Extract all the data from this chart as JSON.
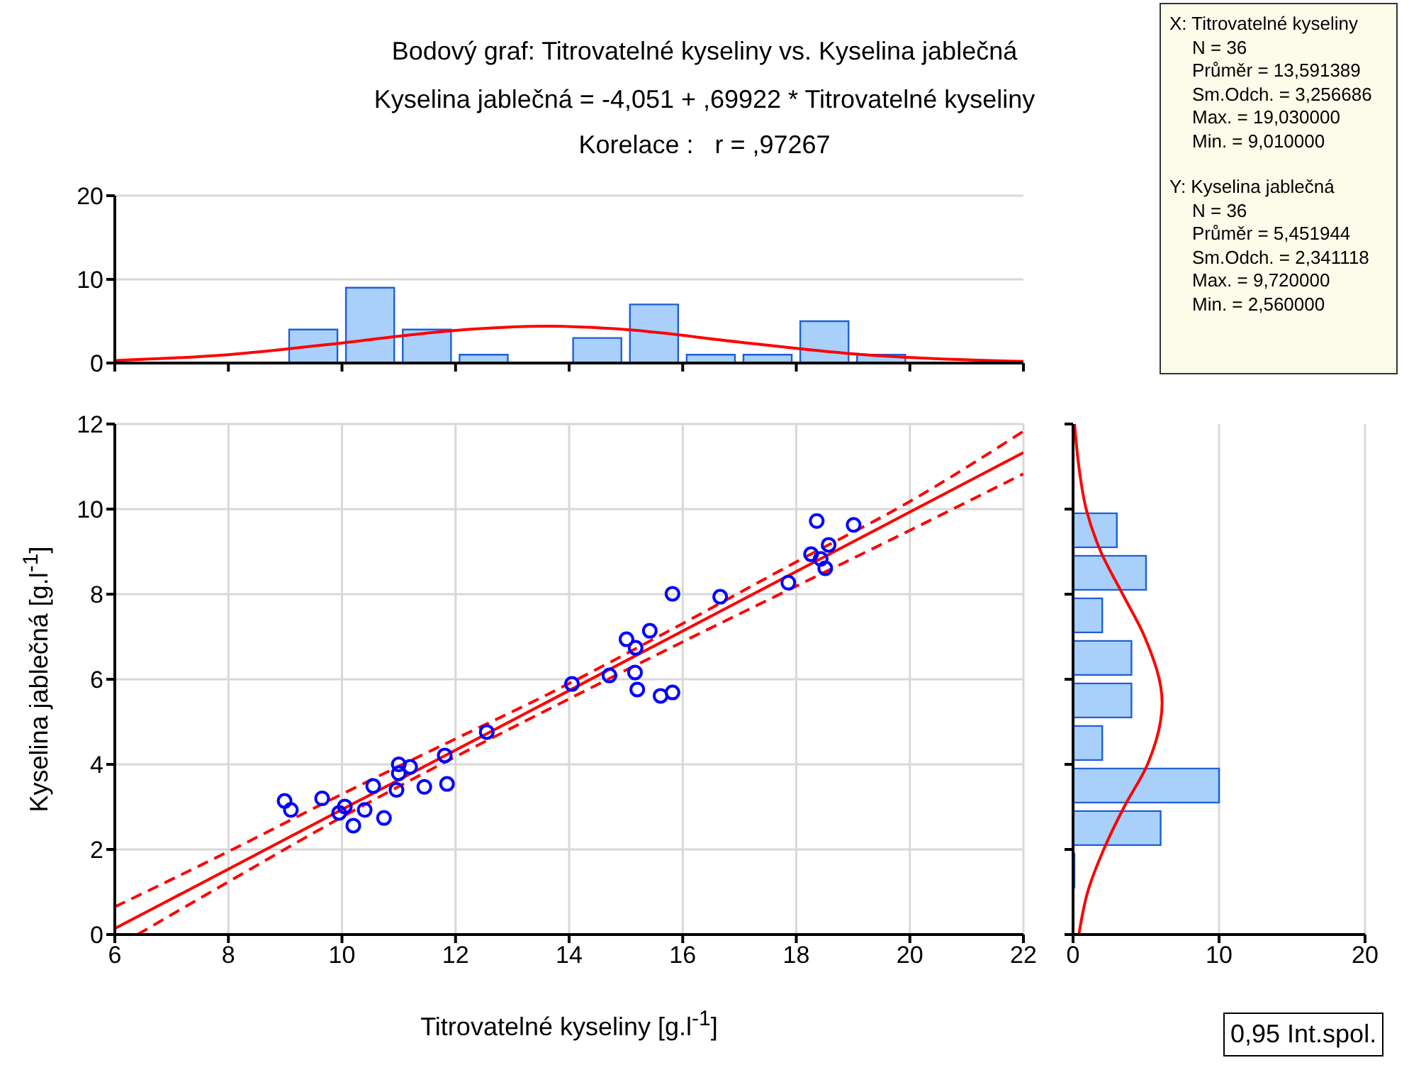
{
  "chart_data": [
    {
      "type": "histogram",
      "title": "Bodový graf: Titrovatelné kyseliny vs. Kyselina jablečná",
      "subtitle": "Kyselina jablečná = -4,051 + ,69922 * Titrovatelné kyseliny",
      "annotations": [
        "Korelace :   r = ,97267"
      ],
      "bins": [
        8,
        9,
        10,
        11,
        12,
        13,
        14,
        15,
        16,
        17,
        18,
        19,
        20
      ],
      "xlim": [
        6,
        22
      ],
      "xticks": [
        {
          "value": 6,
          "label": null
        },
        {
          "value": 8,
          "label": null
        },
        {
          "value": 10,
          "label": null
        },
        {
          "value": 12,
          "label": null
        },
        {
          "value": 14,
          "label": null
        },
        {
          "value": 16,
          "label": null
        },
        {
          "value": 18,
          "label": null
        },
        {
          "value": 20,
          "label": null
        },
        {
          "value": 22,
          "label": null
        }
      ],
      "ylim": [
        0,
        20
      ],
      "yticks": [
        0,
        10,
        20
      ],
      "tick_labels": "y",
      "grid": "y",
      "legend": false,
      "series": [
        {
          "type": "histogram",
          "color": "#a8d0fa",
          "values": [
            0,
            4,
            9,
            4,
            1,
            0,
            3,
            7,
            1,
            1,
            5,
            1
          ]
        },
        {
          "type": "line",
          "color": "#ff0000",
          "x": [
            6,
            8,
            10,
            12,
            13.6,
            15,
            17,
            19,
            22
          ],
          "values": [
            0.3,
            1.0,
            2.4,
            3.9,
            4.4,
            4.0,
            2.5,
            1.1,
            0.2
          ]
        }
      ]
    },
    {
      "type": "other",
      "annotations": [
        "X:  Titrovatelné kyseliny",
        "N = 36",
        "Průměr = 13,591389",
        "Sm.Odch. = 3,256686",
        "Max. = 19,030000",
        "Min. = 9,010000",
        "Y:  Kyselina jablečná",
        "N = 36",
        "Průměr = 5,451944",
        "Sm.Odch. = 2,341118",
        "Max. = 9,720000",
        "Min. = 2,560000"
      ]
    },
    {
      "type": "scatter",
      "xlabel": "Titrovatelné kyseliny [g.l$^{-1}$]",
      "ylabel": "Kyselina jablečná [g.l$^{-1}$]",
      "annotations": [
        "0,95 Int.spol."
      ],
      "xlim": [
        6,
        22
      ],
      "xticks": [
        6,
        8,
        10,
        12,
        14,
        16,
        18,
        20,
        22
      ],
      "ylim": [
        0,
        12
      ],
      "yticks": [
        0,
        2,
        4,
        6,
        8,
        10,
        12
      ],
      "grid": true,
      "legend": false,
      "series": [
        {
          "type": "scatter",
          "color": "#0000ff",
          "marker": "circle",
          "x": [
            8.99,
            9.1,
            9.65,
            9.95,
            10.05,
            10.2,
            10.4,
            10.55,
            10.74,
            10.96,
            11.0,
            11.0,
            11.2,
            11.45,
            11.81,
            11.85,
            12.55,
            14.05,
            14.71,
            15.16,
            15.2,
            15.61,
            15.82,
            15.01,
            15.17,
            15.42,
            15.82,
            16.66,
            17.86,
            18.26,
            18.36,
            18.43,
            18.51,
            18.57,
            19.01
          ],
          "values": [
            3.14,
            2.93,
            3.2,
            2.86,
            3.01,
            2.56,
            2.93,
            3.49,
            2.74,
            3.4,
            4.0,
            3.79,
            3.94,
            3.47,
            4.21,
            3.54,
            4.76,
            5.89,
            6.09,
            6.16,
            5.76,
            5.61,
            5.69,
            6.94,
            6.74,
            7.14,
            8.01,
            7.94,
            8.27,
            8.94,
            9.72,
            8.83,
            8.61,
            9.16,
            9.63
          ]
        },
        {
          "type": "line",
          "color": "#ff0000",
          "line_style": "solid",
          "x": [
            6,
            22
          ],
          "values": [
            0.14,
            11.33
          ]
        },
        {
          "type": "line",
          "color": "#ff0000",
          "line_style": "dashed",
          "x": [
            6,
            8,
            10,
            12,
            13.6,
            16,
            18,
            20,
            22
          ],
          "values": [
            0.65,
            1.95,
            3.3,
            4.6,
            5.63,
            7.31,
            8.76,
            10.18,
            11.83
          ]
        },
        {
          "type": "line",
          "color": "#ff0000",
          "line_style": "dashed",
          "x": [
            6.4,
            8,
            10,
            12,
            13.6,
            16,
            18,
            20,
            22
          ],
          "values": [
            0,
            1.24,
            2.76,
            4.18,
            5.27,
            6.88,
            8.19,
            9.5,
            10.83
          ]
        }
      ]
    },
    {
      "type": "histogram",
      "orientation": "horizontal",
      "bins": [
        1,
        2,
        3,
        4,
        5,
        6,
        7,
        8,
        9,
        10
      ],
      "ylim": [
        0,
        12
      ],
      "yticks": [
        {
          "value": 0,
          "label": null
        },
        {
          "value": 2,
          "label": null
        },
        {
          "value": 4,
          "label": null
        },
        {
          "value": 6,
          "label": null
        },
        {
          "value": 8,
          "label": null
        },
        {
          "value": 10,
          "label": null
        },
        {
          "value": 12,
          "label": null
        }
      ],
      "xlim": [
        0,
        20
      ],
      "xticks": [
        0,
        10,
        20
      ],
      "tick_labels": "x",
      "grid": "x",
      "legend": false,
      "series": [
        {
          "type": "histogram",
          "color": "#a8d0fa",
          "values": [
            0,
            6,
            10,
            2,
            4,
            4,
            2,
            5,
            3
          ]
        },
        {
          "type": "line",
          "color": "#ff0000",
          "x": [
            0,
            1,
            2,
            3,
            4,
            5.45,
            7,
            8,
            9,
            10,
            11,
            12
          ],
          "values": [
            0.4,
            1.0,
            2.1,
            3.5,
            5.1,
            6.1,
            4.9,
            3.4,
            1.9,
            0.9,
            0.4,
            0.1
          ]
        }
      ]
    }
  ]
}
